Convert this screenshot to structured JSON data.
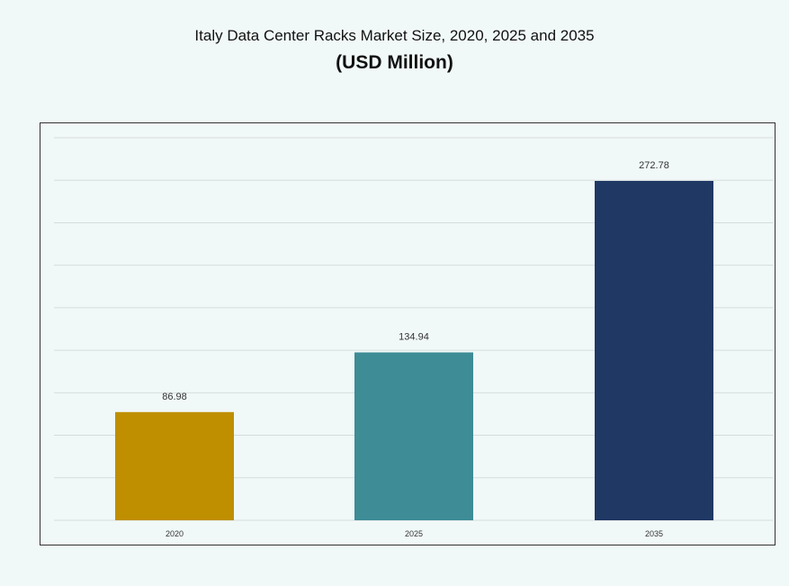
{
  "chart_data": {
    "type": "bar",
    "title": "Italy Data Center Racks Market Size, 2020, 2025 and 2035",
    "subtitle": "(USD Million)",
    "categories": [
      "2020",
      "2025",
      "2035"
    ],
    "values": [
      86.98,
      134.94,
      272.78
    ],
    "data_labels": [
      "86.98",
      "134.94",
      "272.78"
    ],
    "colors": [
      "#bf8f00",
      "#3d8c96",
      "#1f3864"
    ],
    "xlabel": "",
    "ylabel": "",
    "ylim": [
      0,
      307.5
    ],
    "grid": true,
    "y_axis_visible": false,
    "legend": "none"
  }
}
